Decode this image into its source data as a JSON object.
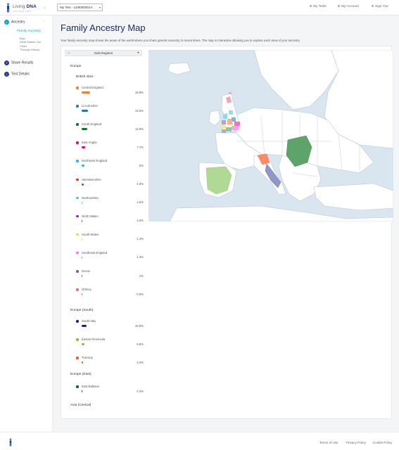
{
  "header": {
    "logo_text_a": "Living",
    "logo_text_b": "DNA",
    "logo_sub": "ANCESTRY",
    "test_select": "My Test - LD0000001A",
    "nav": [
      {
        "label": "My Tests",
        "icon": "tests-icon"
      },
      {
        "label": "My Account",
        "icon": "account-icon"
      },
      {
        "label": "Sign Out",
        "icon": "signout-icon"
      }
    ]
  },
  "sidebar": {
    "ancestry": "Ancestry",
    "family_ancestry": "Family Ancestry",
    "sub_items": [
      "Map",
      "What Makes You",
      "Chart",
      "Through History"
    ],
    "share_results": "Share Results",
    "test_details": "Test Details"
  },
  "main": {
    "title": "Family Ancestry Map",
    "description": "Your family ancestry map shows the areas of the world where you share genetic ancestry in recent times. The map is interactive allowing you to explore each area of your ancestry.",
    "panel_title": "Sub Regions",
    "panel_minus": "−",
    "panel_plus": "+",
    "groups": {
      "europe": "Europe",
      "british_isles": "British Isles",
      "europe_south": "Europe (South)",
      "europe_east": "Europe (East)",
      "asia_central": "Asia (Central)"
    },
    "regions": [
      {
        "name": "Central England",
        "pct": "18.8%",
        "value": 18.8,
        "color": "#f47a3a"
      },
      {
        "name": "Lincolnshire",
        "pct": "14.6%",
        "value": 14.6,
        "color": "#1f78b4"
      },
      {
        "name": "South England",
        "pct": "11.9%",
        "value": 11.9,
        "color": "#1b6b2f"
      },
      {
        "name": "East Anglia",
        "pct": "7.7%",
        "value": 7.7,
        "color": "#e6007e"
      },
      {
        "name": "Northwest England",
        "pct": "6%",
        "value": 6,
        "color": "#29b6e8"
      },
      {
        "name": "Aberdeenshire",
        "pct": "4.3%",
        "value": 4.3,
        "color": "#d32f2f"
      },
      {
        "name": "Northumbria",
        "pct": "1.6%",
        "value": 1.6,
        "color": "#5bc2b5"
      },
      {
        "name": "North Wales",
        "pct": "1.6%",
        "value": 1.6,
        "color": "#8e24aa"
      },
      {
        "name": "South Wales",
        "pct": "1.4%",
        "value": 1.4,
        "color": "#d4e157"
      },
      {
        "name": "Southeast England",
        "pct": "1.3%",
        "value": 1.3,
        "color": "#f06ee0"
      },
      {
        "name": "Devon",
        "pct": "1%",
        "value": 1,
        "color": "#7e57c2"
      },
      {
        "name": "Orkney",
        "pct": "0.3%",
        "value": 0.3,
        "color": "#ef6c6c"
      },
      {
        "name": "South Italy",
        "pct": "10.5%",
        "value": 10.5,
        "color": "#1a237e"
      },
      {
        "name": "Iberian Peninsula",
        "pct": "6.5%",
        "value": 6.5,
        "color": "#7cc242"
      },
      {
        "name": "Tuscany",
        "pct": "3.3%",
        "value": 3.3,
        "color": "#ff5722"
      },
      {
        "name": "East Balkans",
        "pct": "2.3%",
        "value": 2.3,
        "color": "#1b5e20"
      }
    ]
  },
  "footer": {
    "links": [
      "Terms of Use",
      "Privacy Policy",
      "Cookie Policy"
    ]
  },
  "colors": {
    "brand": "#1e2d6b",
    "accent": "#17a2b8",
    "page_bg": "#f4f5f7",
    "sea": "#d9e6ef"
  }
}
